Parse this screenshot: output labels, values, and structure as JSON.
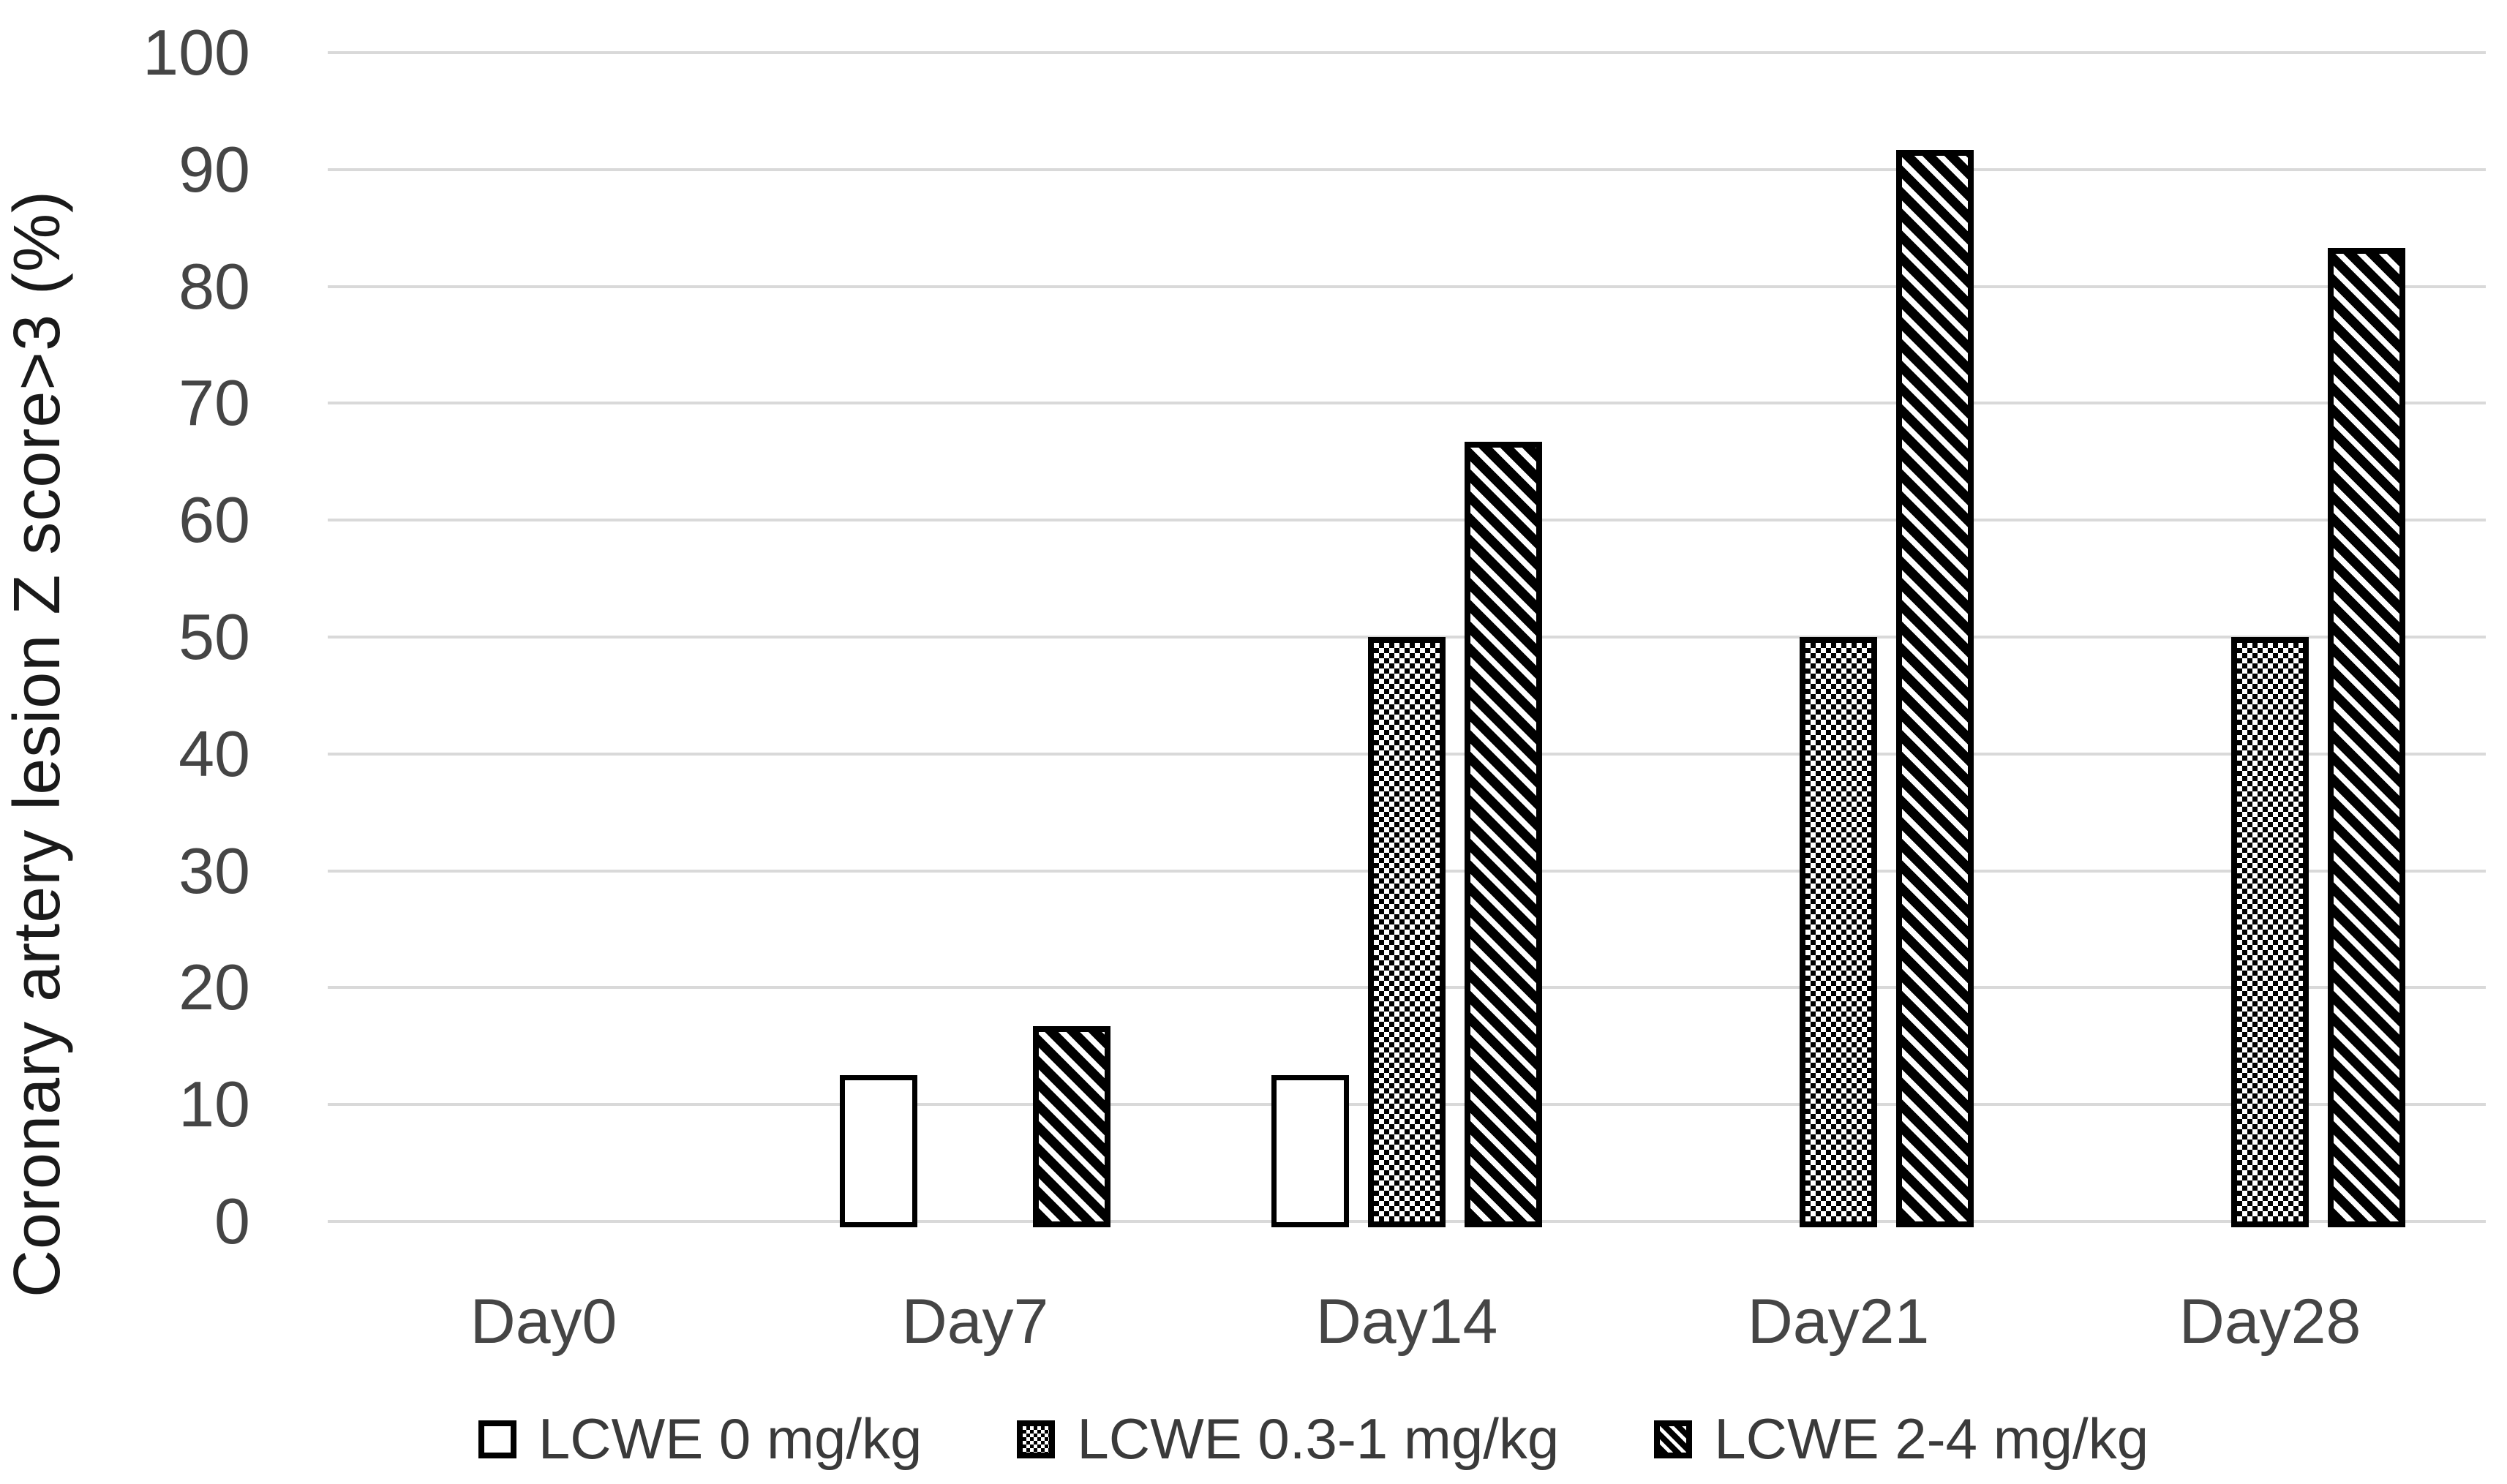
{
  "chart_data": {
    "type": "bar",
    "title": "",
    "ylabel": "Coronary artery lesion Z score>3 (%)",
    "xlabel": "",
    "ylim": [
      0,
      100
    ],
    "ytick_step": 10,
    "grid": true,
    "legend_position": "bottom",
    "categories": [
      "Day0",
      "Day7",
      "Day14",
      "Day21",
      "Day28"
    ],
    "series": [
      {
        "name": "LCWE 0 mg/kg",
        "pattern": "white",
        "values": [
          0,
          12.5,
          12.5,
          0,
          0
        ]
      },
      {
        "name": "LCWE 0.3-1 mg/kg",
        "pattern": "checker",
        "values": [
          0,
          0,
          50,
          50,
          50
        ]
      },
      {
        "name": "LCWE 2-4 mg/kg",
        "pattern": "diagonal-hatch",
        "values": [
          0,
          16.7,
          66.7,
          91.7,
          83.3
        ]
      }
    ]
  },
  "colors": {
    "background": "#ffffff",
    "gridline": "#d9d9d9",
    "bar_border": "#000000",
    "tick_text": "#454545",
    "category_text": "#454545",
    "legend_text": "#3a3a3a",
    "ylabel_text": "#1a1a1a"
  }
}
